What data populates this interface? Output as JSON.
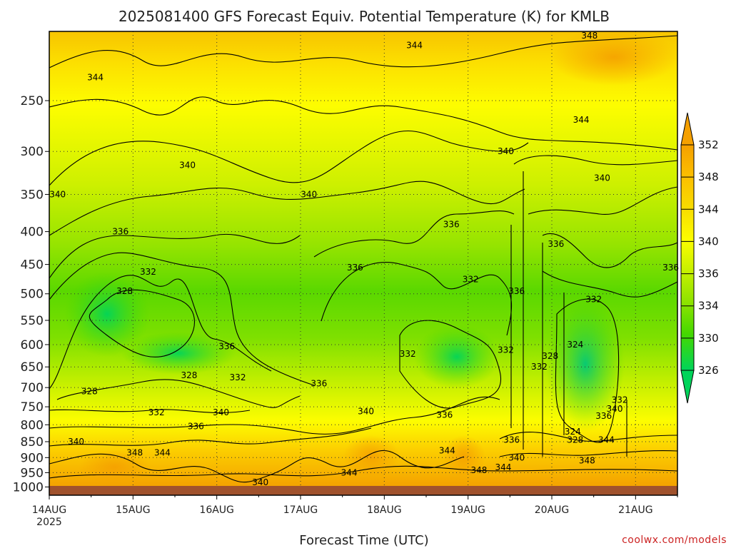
{
  "chart_data": {
    "type": "heatmap",
    "title": "2025081400 GFS Forecast Equiv. Potential Temperature (K) for KMLB",
    "xlabel": "Forecast Time (UTC)",
    "ylabel": "",
    "x_ticks": [
      "14AUG",
      "15AUG",
      "16AUG",
      "17AUG",
      "18AUG",
      "19AUG",
      "20AUG",
      "21AUG"
    ],
    "x_year_label": "2025",
    "y_ticks": [
      250,
      300,
      350,
      400,
      450,
      500,
      550,
      600,
      650,
      700,
      750,
      800,
      850,
      900,
      950,
      1000
    ],
    "y_reversed": true,
    "colorbar": {
      "labels": [
        352,
        348,
        344,
        340,
        336,
        334,
        330,
        326
      ],
      "colors": [
        "#f5a000",
        "#fcbf00",
        "#f8dc00",
        "#fdfd00",
        "#c6f000",
        "#8de300",
        "#44d800",
        "#00d45a",
        "#00c878"
      ]
    },
    "contour_labels": [
      {
        "text": "344",
        "t": 0.55,
        "p": 230
      },
      {
        "text": "344",
        "t": 4.36,
        "p": 205
      },
      {
        "text": "348",
        "t": 6.45,
        "p": 198
      },
      {
        "text": "344",
        "t": 6.35,
        "p": 268
      },
      {
        "text": "340",
        "t": 1.65,
        "p": 315
      },
      {
        "text": "340",
        "t": 5.45,
        "p": 300
      },
      {
        "text": "340",
        "t": 0.1,
        "p": 350
      },
      {
        "text": "340",
        "t": 3.1,
        "p": 350
      },
      {
        "text": "340",
        "t": 6.6,
        "p": 330
      },
      {
        "text": "336",
        "t": 0.85,
        "p": 400
      },
      {
        "text": "336",
        "t": 4.8,
        "p": 390
      },
      {
        "text": "336",
        "t": 6.05,
        "p": 418
      },
      {
        "text": "336",
        "t": 7.42,
        "p": 455
      },
      {
        "text": "332",
        "t": 1.18,
        "p": 462
      },
      {
        "text": "336",
        "t": 3.65,
        "p": 455
      },
      {
        "text": "332",
        "t": 5.03,
        "p": 475
      },
      {
        "text": "336",
        "t": 5.58,
        "p": 495
      },
      {
        "text": "328",
        "t": 0.9,
        "p": 495
      },
      {
        "text": "332",
        "t": 6.5,
        "p": 510
      },
      {
        "text": "324",
        "t": 6.28,
        "p": 600
      },
      {
        "text": "336",
        "t": 2.12,
        "p": 604
      },
      {
        "text": "332",
        "t": 4.28,
        "p": 620
      },
      {
        "text": "332",
        "t": 5.45,
        "p": 612
      },
      {
        "text": "328",
        "t": 5.98,
        "p": 625
      },
      {
        "text": "328",
        "t": 1.67,
        "p": 670
      },
      {
        "text": "332",
        "t": 2.25,
        "p": 675
      },
      {
        "text": "332",
        "t": 5.85,
        "p": 650
      },
      {
        "text": "336",
        "t": 3.22,
        "p": 690
      },
      {
        "text": "328",
        "t": 0.48,
        "p": 710
      },
      {
        "text": "332",
        "t": 6.81,
        "p": 732
      },
      {
        "text": "340",
        "t": 6.75,
        "p": 756
      },
      {
        "text": "332",
        "t": 1.28,
        "p": 765
      },
      {
        "text": "340",
        "t": 2.05,
        "p": 765
      },
      {
        "text": "340",
        "t": 3.78,
        "p": 762
      },
      {
        "text": "336",
        "t": 4.72,
        "p": 772
      },
      {
        "text": "336",
        "t": 6.62,
        "p": 775
      },
      {
        "text": "336",
        "t": 1.75,
        "p": 805
      },
      {
        "text": "324",
        "t": 6.25,
        "p": 820
      },
      {
        "text": "328",
        "t": 6.28,
        "p": 845
      },
      {
        "text": "344",
        "t": 6.65,
        "p": 845
      },
      {
        "text": "336",
        "t": 5.52,
        "p": 845
      },
      {
        "text": "340",
        "t": 0.32,
        "p": 850
      },
      {
        "text": "344",
        "t": 4.75,
        "p": 878
      },
      {
        "text": "348",
        "t": 1.02,
        "p": 885
      },
      {
        "text": "344",
        "t": 1.35,
        "p": 885
      },
      {
        "text": "340",
        "t": 5.58,
        "p": 900
      },
      {
        "text": "348",
        "t": 6.42,
        "p": 910
      },
      {
        "text": "344",
        "t": 5.42,
        "p": 932
      },
      {
        "text": "348",
        "t": 5.13,
        "p": 942
      },
      {
        "text": "344",
        "t": 3.58,
        "p": 950
      },
      {
        "text": "340",
        "t": 2.52,
        "p": 983
      }
    ]
  },
  "credit": "coolwx.com/models"
}
